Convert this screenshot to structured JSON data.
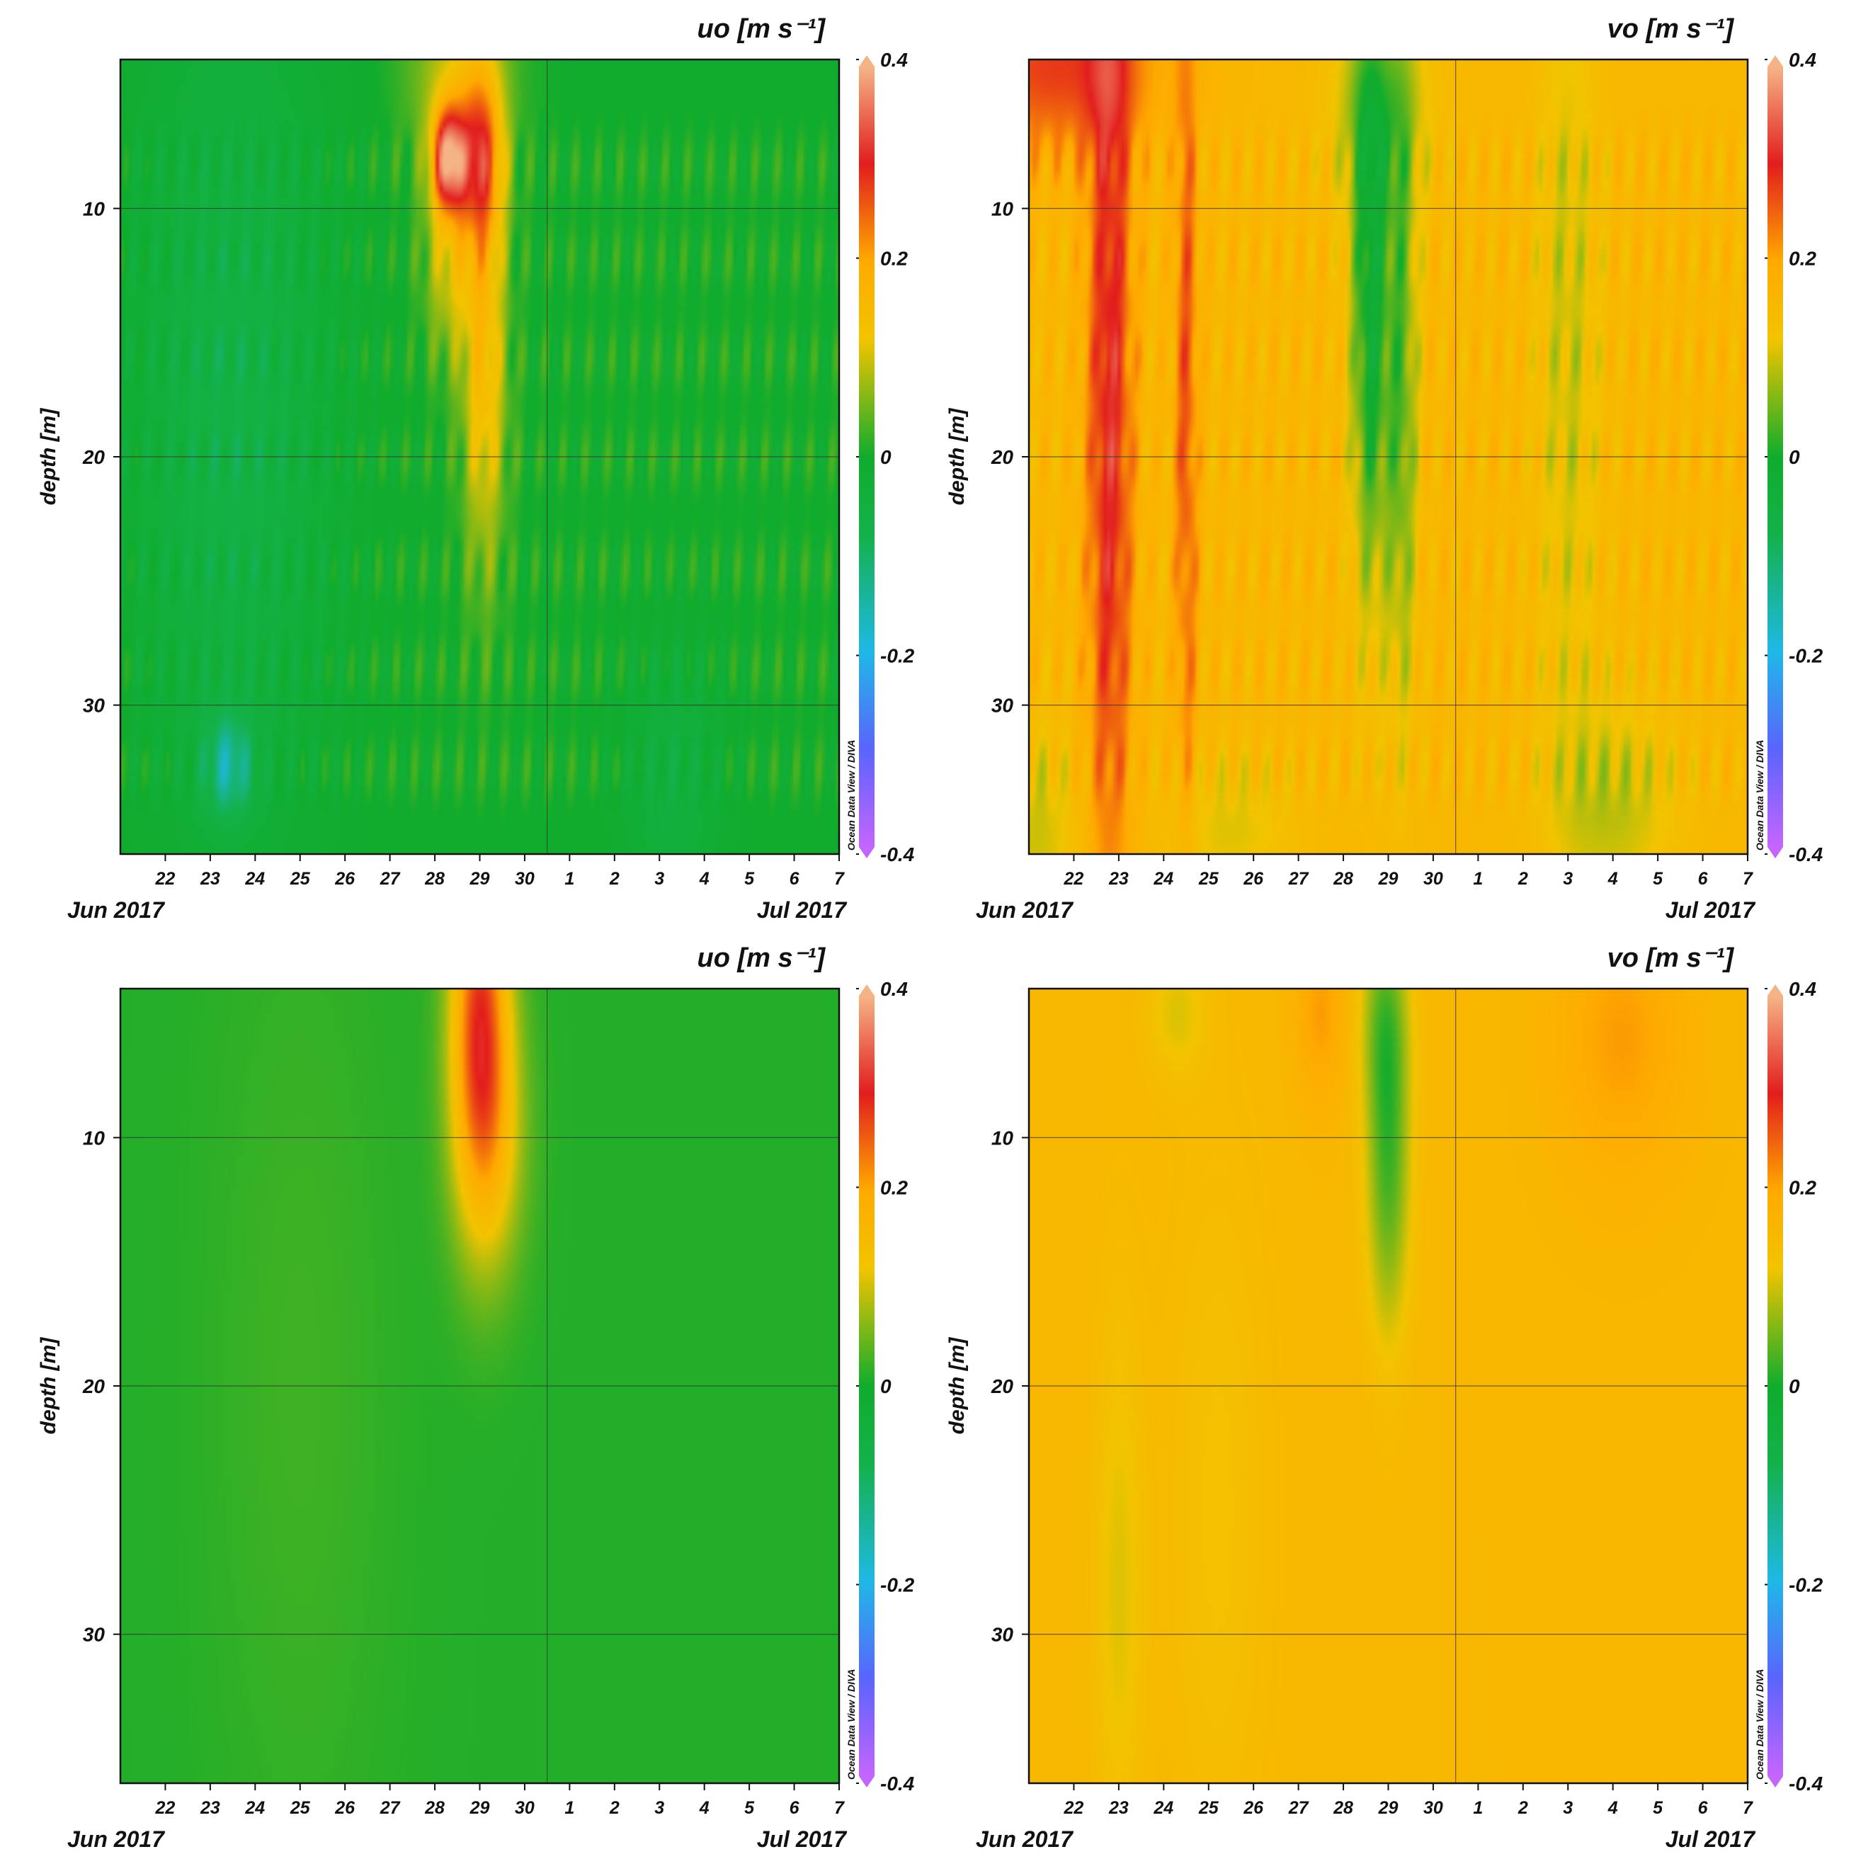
{
  "colors": {
    "scale": [
      "#c565ff",
      "#5a64ff",
      "#1fb8e6",
      "#14b14a",
      "#10ac2d",
      "#f2c400",
      "#ffaa00",
      "#e21d1d",
      "#f5b486"
    ],
    "background": "#ffffff"
  },
  "chart_data": [
    {
      "type": "heatmap",
      "panel": "top-left",
      "title": "uo [m s⁻¹]",
      "xlabel_start": "Jun 2017",
      "xlabel_end": "Jul 2017",
      "ylabel": "depth [m]",
      "x_ticks": [
        "22",
        "23",
        "24",
        "25",
        "26",
        "27",
        "28",
        "29",
        "30",
        "1",
        "2",
        "3",
        "4",
        "5",
        "6",
        "7"
      ],
      "y_ticks": [
        "10",
        "20",
        "30"
      ],
      "ylim": [
        4,
        36
      ],
      "xlim": [
        "2017-06-21",
        "2017-07-07"
      ],
      "colorbar_ticks": [
        "0.4",
        "0.2",
        "0",
        "-0.2",
        "-0.4"
      ],
      "colorbar_range": [
        -0.4,
        0.4
      ],
      "credit": "Ocean Data View / DIVA",
      "background_value": 0.0,
      "features": [
        {
          "day": 28.3,
          "depth": 8,
          "value": 0.32,
          "sx": 0.25,
          "sy": 1.5
        },
        {
          "day": 29.0,
          "depth": 8,
          "value": 0.22,
          "sx": 0.35,
          "sy": 2.5
        },
        {
          "day": 29.1,
          "depth": 16,
          "value": 0.15,
          "sx": 0.35,
          "sy": 6
        },
        {
          "day": 28.3,
          "depth": 12,
          "value": 0.1,
          "sx": 0.4,
          "sy": 3
        },
        {
          "day": 28.5,
          "depth": 4.5,
          "value": 0.09,
          "sx": 0.8,
          "sy": 3
        },
        {
          "day": 23.5,
          "depth": 18,
          "value": -0.07,
          "sx": 1.6,
          "sy": 12
        },
        {
          "day": 33.3,
          "depth": 33,
          "value": -0.05,
          "sx": 0.8,
          "sy": 4
        },
        {
          "day": 23.4,
          "depth": 32.5,
          "value": -0.12,
          "sx": 0.4,
          "sy": 1.5
        }
      ],
      "striation_amplitude": 0.035
    },
    {
      "type": "heatmap",
      "panel": "top-right",
      "title": "vo [m s⁻¹]",
      "xlabel_start": "Jun 2017",
      "xlabel_end": "Jul 2017",
      "ylabel": "depth [m]",
      "x_ticks": [
        "22",
        "23",
        "24",
        "25",
        "26",
        "27",
        "28",
        "29",
        "30",
        "1",
        "2",
        "3",
        "4",
        "5",
        "6",
        "7"
      ],
      "y_ticks": [
        "10",
        "20",
        "30"
      ],
      "ylim": [
        4,
        36
      ],
      "xlim": [
        "2017-06-21",
        "2017-07-07"
      ],
      "colorbar_ticks": [
        "0.4",
        "0.2",
        "0",
        "-0.2",
        "-0.4"
      ],
      "colorbar_range": [
        -0.4,
        0.4
      ],
      "credit": "Ocean Data View / DIVA",
      "background_value": 0.16,
      "features": [
        {
          "day": 22.8,
          "depth": 18,
          "value": 0.15,
          "sx": 0.35,
          "sy": 14
        },
        {
          "day": 21.6,
          "depth": 4.2,
          "value": 0.12,
          "sx": 1.5,
          "sy": 2.5
        },
        {
          "day": 24.5,
          "depth": 18,
          "value": 0.1,
          "sx": 0.18,
          "sy": 12
        },
        {
          "day": 28.6,
          "depth": 14,
          "value": -0.18,
          "sx": 0.3,
          "sy": 8
        },
        {
          "day": 29.3,
          "depth": 17,
          "value": -0.12,
          "sx": 0.25,
          "sy": 9
        },
        {
          "day": 28.8,
          "depth": 6,
          "value": -0.08,
          "sx": 0.8,
          "sy": 3
        },
        {
          "day": 33.0,
          "depth": 15,
          "value": -0.06,
          "sx": 0.5,
          "sy": 12
        },
        {
          "day": 34.0,
          "depth": 34,
          "value": -0.07,
          "sx": 1.0,
          "sy": 3
        },
        {
          "day": 21.2,
          "depth": 35,
          "value": -0.06,
          "sx": 0.6,
          "sy": 3
        },
        {
          "day": 25.5,
          "depth": 35,
          "value": -0.05,
          "sx": 1.0,
          "sy": 2
        }
      ],
      "striation_amplitude": 0.04
    },
    {
      "type": "heatmap",
      "panel": "bottom-left",
      "title": "uo [m s⁻¹]",
      "xlabel_start": "Jun 2017",
      "xlabel_end": "Jul 2017",
      "ylabel": "depth [m]",
      "x_ticks": [
        "22",
        "23",
        "24",
        "25",
        "26",
        "27",
        "28",
        "29",
        "30",
        "1",
        "2",
        "3",
        "4",
        "5",
        "6",
        "7"
      ],
      "y_ticks": [
        "10",
        "20",
        "30"
      ],
      "ylim": [
        4,
        36
      ],
      "xlim": [
        "2017-06-21",
        "2017-07-07"
      ],
      "colorbar_ticks": [
        "0.4",
        "0.2",
        "0",
        "-0.2",
        "-0.4"
      ],
      "colorbar_range": [
        -0.4,
        0.4
      ],
      "credit": "Ocean Data View / DIVA",
      "background_value": 0.01,
      "features": [
        {
          "day": 29.0,
          "depth": 4.5,
          "value": 0.24,
          "sx": 0.45,
          "sy": 5
        },
        {
          "day": 29.2,
          "depth": 10,
          "value": 0.12,
          "sx": 0.55,
          "sy": 4
        },
        {
          "day": 25.0,
          "depth": 20,
          "value": 0.015,
          "sx": 1.5,
          "sy": 15
        }
      ],
      "striation_amplitude": 0.0
    },
    {
      "type": "heatmap",
      "panel": "bottom-right",
      "title": "vo [m s⁻¹]",
      "xlabel_start": "Jun 2017",
      "xlabel_end": "Jul 2017",
      "ylabel": "depth [m]",
      "x_ticks": [
        "22",
        "23",
        "24",
        "25",
        "26",
        "27",
        "28",
        "29",
        "30",
        "1",
        "2",
        "3",
        "4",
        "5",
        "6",
        "7"
      ],
      "y_ticks": [
        "10",
        "20",
        "30"
      ],
      "ylim": [
        4,
        36
      ],
      "xlim": [
        "2017-06-21",
        "2017-07-07"
      ],
      "colorbar_ticks": [
        "0.4",
        "0.2",
        "0",
        "-0.2",
        "-0.4"
      ],
      "colorbar_range": [
        -0.4,
        0.4
      ],
      "credit": "Ocean Data View / DIVA",
      "background_value": 0.16,
      "features": [
        {
          "day": 29.0,
          "depth": 11,
          "value": -0.13,
          "sx": 0.35,
          "sy": 5
        },
        {
          "day": 28.9,
          "depth": 5,
          "value": -0.08,
          "sx": 0.4,
          "sy": 3
        },
        {
          "day": 27.5,
          "depth": 5,
          "value": 0.05,
          "sx": 0.4,
          "sy": 2.5
        },
        {
          "day": 34.2,
          "depth": 6,
          "value": 0.05,
          "sx": 1.0,
          "sy": 4
        },
        {
          "day": 24.3,
          "depth": 5,
          "value": -0.05,
          "sx": 0.5,
          "sy": 2
        },
        {
          "day": 23.0,
          "depth": 28,
          "value": -0.05,
          "sx": 0.4,
          "sy": 8
        },
        {
          "day": 25.2,
          "depth": 25,
          "value": -0.03,
          "sx": 0.8,
          "sy": 10
        }
      ],
      "striation_amplitude": 0.0
    }
  ]
}
